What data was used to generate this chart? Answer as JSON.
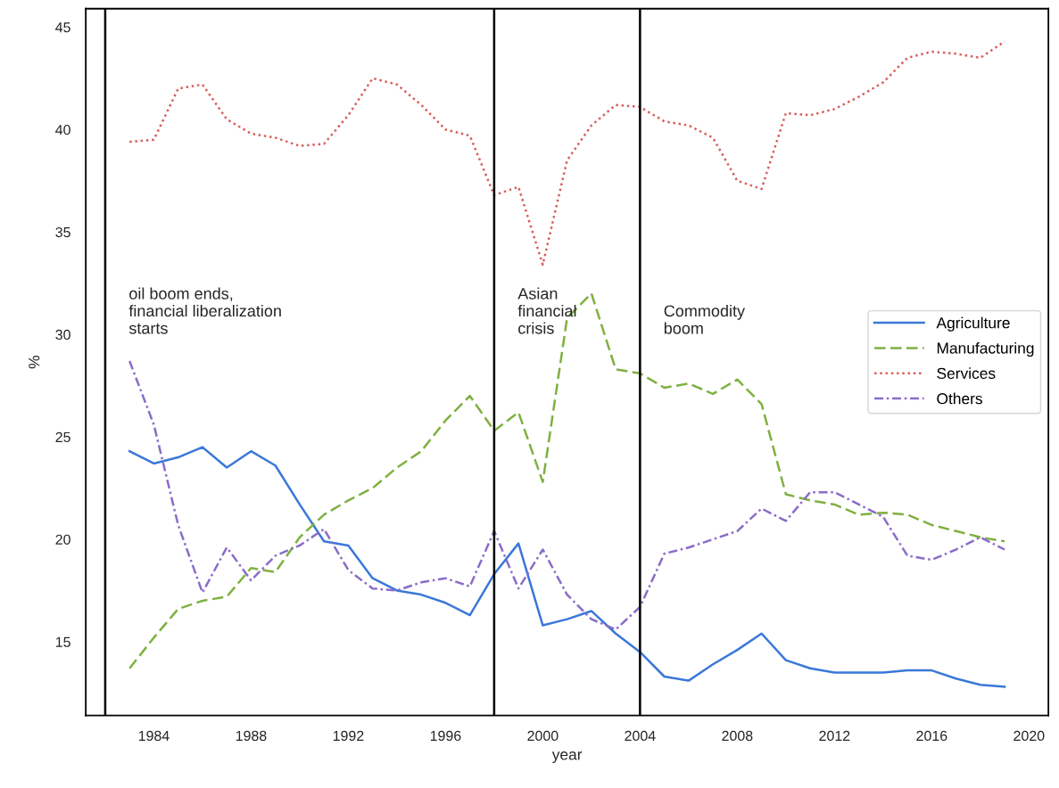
{
  "chart_data": {
    "type": "line",
    "xlabel": "year",
    "ylabel": "%",
    "x": [
      1983,
      1984,
      1985,
      1986,
      1987,
      1988,
      1989,
      1990,
      1991,
      1992,
      1993,
      1994,
      1995,
      1996,
      1997,
      1998,
      1999,
      2000,
      2001,
      2002,
      2003,
      2004,
      2005,
      2006,
      2007,
      2008,
      2009,
      2010,
      2011,
      2012,
      2013,
      2014,
      2015,
      2016,
      2017,
      2018,
      2019
    ],
    "series": [
      {
        "name": "Agriculture",
        "color": "#3a78d8",
        "line_style": "solid",
        "values": [
          24.3,
          23.7,
          24.0,
          24.5,
          23.5,
          24.3,
          23.6,
          21.7,
          19.9,
          19.7,
          18.1,
          17.5,
          17.3,
          16.9,
          16.3,
          18.3,
          19.8,
          15.8,
          16.1,
          16.5,
          15.4,
          14.5,
          13.3,
          13.1,
          13.9,
          14.6,
          15.4,
          14.1,
          13.7,
          13.5,
          13.5,
          13.5,
          13.6,
          13.6,
          13.2,
          12.9,
          12.8
        ]
      },
      {
        "name": "Manufacturing",
        "color": "#7fb040",
        "line_style": "dashed",
        "values": [
          13.7,
          15.2,
          16.6,
          17.0,
          17.2,
          18.6,
          18.4,
          20.1,
          21.2,
          21.9,
          22.5,
          23.5,
          24.3,
          25.8,
          27.0,
          25.3,
          26.2,
          22.8,
          30.8,
          32.0,
          28.3,
          28.1,
          27.4,
          27.6,
          27.1,
          27.8,
          26.6,
          22.2,
          21.9,
          21.7,
          21.2,
          21.3,
          21.2,
          20.7,
          20.4,
          20.1,
          19.9
        ]
      },
      {
        "name": "Services",
        "color": "#d65f5f",
        "line_style": "dotted",
        "values": [
          39.4,
          39.5,
          42.0,
          42.2,
          40.5,
          39.8,
          39.6,
          39.2,
          39.3,
          40.7,
          42.5,
          42.2,
          41.2,
          40.0,
          39.7,
          36.8,
          37.2,
          33.4,
          38.5,
          40.2,
          41.2,
          41.1,
          40.4,
          40.2,
          39.6,
          37.5,
          37.1,
          40.8,
          40.7,
          41.0,
          41.6,
          42.3,
          43.5,
          43.8,
          43.7,
          43.5,
          44.3
        ]
      },
      {
        "name": "Others",
        "color": "#8a6cc8",
        "line_style": "dashdot",
        "values": [
          28.7,
          25.6,
          20.7,
          17.4,
          19.6,
          18.0,
          19.2,
          19.7,
          20.5,
          18.5,
          17.6,
          17.5,
          17.9,
          18.1,
          17.7,
          20.4,
          17.6,
          19.5,
          17.3,
          16.1,
          15.6,
          16.7,
          19.3,
          19.6,
          20.0,
          20.4,
          21.5,
          20.9,
          22.3,
          22.3,
          21.7,
          21.1,
          19.2,
          19.0,
          19.5,
          20.1,
          19.5
        ]
      }
    ],
    "xlim": [
      1981.2,
      2020.8
    ],
    "ylim": [
      11.4,
      45.9
    ],
    "xticks": [
      1984,
      1988,
      1992,
      1996,
      2000,
      2004,
      2008,
      2012,
      2016,
      2020
    ],
    "yticks": [
      15,
      20,
      25,
      30,
      35,
      40,
      45
    ],
    "ref_lines": [
      {
        "axis": "x",
        "value": 1982,
        "color": "#000000",
        "label": "oil boom ends,\nfinancial liberalization\nstarts"
      },
      {
        "axis": "x",
        "value": 1998,
        "color": "#000000",
        "label": "Asian\nfinancial\ncrisis"
      },
      {
        "axis": "x",
        "value": 2004,
        "color": "#000000",
        "label": "Commodity\nboom"
      }
    ],
    "legend": "center right",
    "grid": false
  }
}
